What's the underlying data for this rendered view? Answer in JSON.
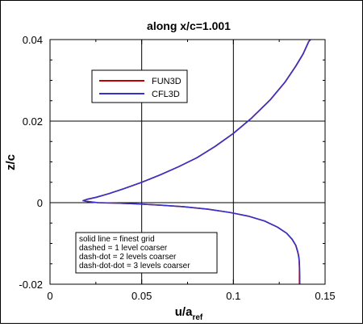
{
  "chart_data": {
    "type": "line",
    "title": "along x/c=1.001",
    "xlabel": "u/a",
    "xlabel_sub": "ref",
    "ylabel": "z/c",
    "xlim": [
      0,
      0.15
    ],
    "ylim": [
      -0.02,
      0.04
    ],
    "xticks": [
      {
        "value": 0,
        "label": "0"
      },
      {
        "value": 0.05,
        "label": "0.05"
      },
      {
        "value": 0.1,
        "label": "0.1"
      },
      {
        "value": 0.15,
        "label": "0.15"
      }
    ],
    "yticks": [
      {
        "value": -0.02,
        "label": "-0.02"
      },
      {
        "value": 0,
        "label": "0"
      },
      {
        "value": 0.02,
        "label": "0.02"
      },
      {
        "value": 0.04,
        "label": "0.04"
      }
    ],
    "grid": true,
    "legend": {
      "position": "upper-left",
      "entries": [
        {
          "name": "FUN3D",
          "color": "#c00000"
        },
        {
          "name": "CFL3D",
          "color": "#3333cc"
        }
      ]
    },
    "annotation": {
      "position": "lower-left",
      "lines": [
        "solid line = finest grid",
        "dashed = 1 level coarser",
        "dash-dot = 2 levels coarser",
        "dash-dot-dot = 3 levels coarser"
      ]
    },
    "series": [
      {
        "name": "FUN3D",
        "color": "#c00000",
        "points": [
          [
            0.136,
            -0.02
          ],
          [
            0.136,
            -0.018
          ],
          [
            0.136,
            -0.016
          ],
          [
            0.1358,
            -0.014
          ],
          [
            0.1355,
            -0.013
          ],
          [
            0.135,
            -0.012
          ],
          [
            0.134,
            -0.0105
          ],
          [
            0.132,
            -0.009
          ],
          [
            0.129,
            -0.0075
          ],
          [
            0.124,
            -0.006
          ],
          [
            0.117,
            -0.0045
          ],
          [
            0.108,
            -0.0033
          ],
          [
            0.098,
            -0.0024
          ],
          [
            0.086,
            -0.0016
          ],
          [
            0.073,
            -0.001
          ],
          [
            0.06,
            -0.0006
          ],
          [
            0.047,
            -0.0003
          ],
          [
            0.035,
            -0.0001
          ],
          [
            0.026,
            0.0
          ],
          [
            0.02,
            0.0003
          ],
          [
            0.018,
            0.0005
          ],
          [
            0.02,
            0.0008
          ],
          [
            0.025,
            0.0013
          ],
          [
            0.032,
            0.0022
          ],
          [
            0.04,
            0.0034
          ],
          [
            0.05,
            0.005
          ],
          [
            0.06,
            0.0068
          ],
          [
            0.07,
            0.0088
          ],
          [
            0.08,
            0.011
          ],
          [
            0.09,
            0.0138
          ],
          [
            0.1,
            0.017
          ],
          [
            0.11,
            0.0208
          ],
          [
            0.12,
            0.0252
          ],
          [
            0.128,
            0.0295
          ],
          [
            0.134,
            0.0335
          ],
          [
            0.138,
            0.0365
          ],
          [
            0.141,
            0.0395
          ],
          [
            0.142,
            0.04
          ]
        ]
      },
      {
        "name": "CFL3D",
        "color": "#3333cc",
        "points": [
          [
            0.1362,
            -0.02
          ],
          [
            0.1362,
            -0.018
          ],
          [
            0.1361,
            -0.016
          ],
          [
            0.1359,
            -0.014
          ],
          [
            0.1356,
            -0.013
          ],
          [
            0.1351,
            -0.012
          ],
          [
            0.1341,
            -0.0105
          ],
          [
            0.1321,
            -0.009
          ],
          [
            0.1291,
            -0.0075
          ],
          [
            0.1241,
            -0.006
          ],
          [
            0.1171,
            -0.0045
          ],
          [
            0.1081,
            -0.0033
          ],
          [
            0.0981,
            -0.0024
          ],
          [
            0.0861,
            -0.0016
          ],
          [
            0.0731,
            -0.001
          ],
          [
            0.0601,
            -0.0006
          ],
          [
            0.0471,
            -0.0003
          ],
          [
            0.0351,
            -0.0001
          ],
          [
            0.0261,
            0.0
          ],
          [
            0.0201,
            0.0003
          ],
          [
            0.0181,
            0.0005
          ],
          [
            0.0201,
            0.0008
          ],
          [
            0.0251,
            0.0013
          ],
          [
            0.0321,
            0.0022
          ],
          [
            0.0401,
            0.0034
          ],
          [
            0.0501,
            0.005
          ],
          [
            0.0601,
            0.0068
          ],
          [
            0.0701,
            0.0088
          ],
          [
            0.0801,
            0.011
          ],
          [
            0.0901,
            0.0138
          ],
          [
            0.1001,
            0.017
          ],
          [
            0.1101,
            0.0208
          ],
          [
            0.1201,
            0.0252
          ],
          [
            0.1281,
            0.0295
          ],
          [
            0.1341,
            0.0335
          ],
          [
            0.1381,
            0.0365
          ],
          [
            0.1411,
            0.0395
          ],
          [
            0.1421,
            0.04
          ]
        ]
      }
    ]
  }
}
